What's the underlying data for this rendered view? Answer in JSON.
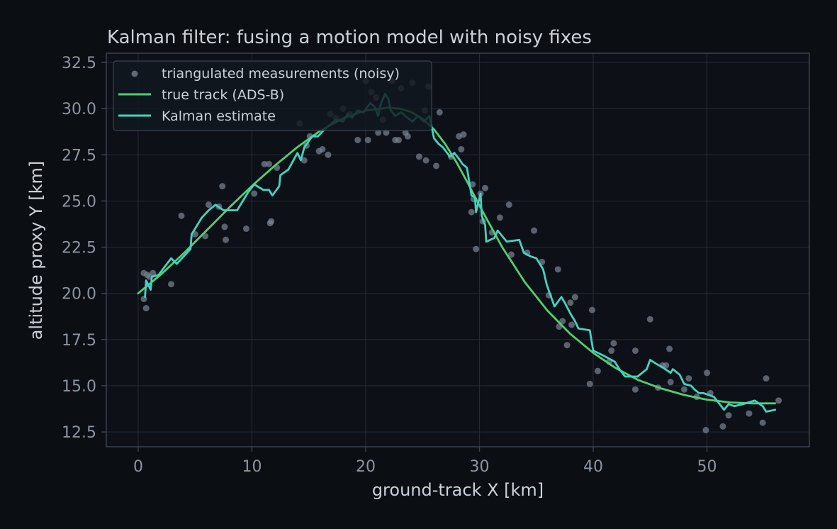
{
  "chart_data": {
    "type": "line",
    "title": "Kalman filter: fusing a motion model with noisy fixes",
    "xlabel": "ground-track X [km]",
    "ylabel": "altitude proxy Y [km]",
    "xlim": [
      -2.8,
      59
    ],
    "ylim": [
      11.7,
      33
    ],
    "xticks": [
      0,
      10,
      20,
      30,
      40,
      50
    ],
    "yticks": [
      12.5,
      15.0,
      17.5,
      20.0,
      22.5,
      25.0,
      27.5,
      30.0,
      32.5
    ],
    "xtick_labels": [
      "0",
      "10",
      "20",
      "30",
      "40",
      "50"
    ],
    "ytick_labels": [
      "12.5",
      "15.0",
      "17.5",
      "20.0",
      "22.5",
      "25.0",
      "27.5",
      "30.0",
      "32.5"
    ],
    "grid": true,
    "legend_position": "top-left",
    "colors": {
      "background": "#0b0e13",
      "plot_background": "#0d1117",
      "measurements": "#7b8594",
      "true_track": "#4fcf73",
      "kalman": "#45d1c0"
    },
    "series": [
      {
        "name": "triangulated measurements (noisy)",
        "kind": "scatter",
        "points": [
          [
            0.5,
            21.1
          ],
          [
            0.5,
            19.7
          ],
          [
            0.7,
            19.2
          ],
          [
            0.8,
            21.0
          ],
          [
            1.0,
            20.9
          ],
          [
            1.3,
            21.1
          ],
          [
            2.9,
            20.5
          ],
          [
            3.8,
            24.2
          ],
          [
            5.0,
            23.2
          ],
          [
            5.9,
            23.1
          ],
          [
            6.2,
            24.8
          ],
          [
            7.1,
            24.7
          ],
          [
            7.4,
            25.8
          ],
          [
            7.6,
            23.6
          ],
          [
            7.7,
            22.9
          ],
          [
            9.5,
            23.5
          ],
          [
            10.2,
            25.4
          ],
          [
            11.1,
            27.0
          ],
          [
            11.5,
            27.0
          ],
          [
            11.6,
            23.8
          ],
          [
            11.7,
            23.9
          ],
          [
            12.2,
            26.8
          ],
          [
            14.2,
            29.2
          ],
          [
            14.6,
            27.2
          ],
          [
            14.8,
            28.0
          ],
          [
            15.1,
            28.5
          ],
          [
            15.9,
            27.7
          ],
          [
            16.2,
            27.8
          ],
          [
            16.7,
            27.5
          ],
          [
            16.9,
            29.7
          ],
          [
            17.4,
            29.5
          ],
          [
            18.0,
            30.0
          ],
          [
            18.6,
            29.7
          ],
          [
            19.3,
            28.3
          ],
          [
            20.0,
            31.5
          ],
          [
            20.2,
            28.3
          ],
          [
            20.5,
            30.9
          ],
          [
            20.9,
            30.6
          ],
          [
            21.1,
            28.7
          ],
          [
            21.5,
            29.4
          ],
          [
            21.8,
            28.7
          ],
          [
            22.3,
            31.5
          ],
          [
            22.6,
            28.3
          ],
          [
            22.9,
            28.3
          ],
          [
            23.1,
            31.1
          ],
          [
            23.5,
            28.7
          ],
          [
            23.7,
            28.5
          ],
          [
            24.1,
            31.4
          ],
          [
            24.7,
            27.4
          ],
          [
            25.2,
            29.9
          ],
          [
            25.3,
            27.2
          ],
          [
            25.5,
            31.2
          ],
          [
            26.2,
            26.9
          ],
          [
            26.5,
            29.8
          ],
          [
            27.5,
            27.4
          ],
          [
            28.2,
            28.5
          ],
          [
            28.4,
            27.8
          ],
          [
            28.6,
            28.6
          ],
          [
            29.3,
            24.4
          ],
          [
            29.4,
            25.9
          ],
          [
            29.5,
            25.1
          ],
          [
            29.7,
            22.4
          ],
          [
            30.1,
            25.4
          ],
          [
            30.3,
            23.9
          ],
          [
            30.5,
            25.7
          ],
          [
            31.1,
            23.3
          ],
          [
            31.8,
            24.1
          ],
          [
            32.6,
            24.8
          ],
          [
            32.8,
            22.1
          ],
          [
            34.2,
            22.2
          ],
          [
            34.8,
            23.4
          ],
          [
            35.5,
            21.7
          ],
          [
            36.1,
            19.9
          ],
          [
            36.9,
            21.3
          ],
          [
            37.0,
            18.2
          ],
          [
            37.3,
            18.5
          ],
          [
            37.7,
            17.2
          ],
          [
            38.0,
            19.5
          ],
          [
            38.1,
            18.3
          ],
          [
            38.4,
            19.8
          ],
          [
            39.7,
            15.1
          ],
          [
            39.9,
            19.1
          ],
          [
            40.4,
            15.8
          ],
          [
            41.4,
            16.3
          ],
          [
            41.6,
            16.9
          ],
          [
            41.8,
            17.3
          ],
          [
            43.7,
            16.9
          ],
          [
            43.7,
            14.8
          ],
          [
            45.0,
            18.6
          ],
          [
            45.7,
            14.9
          ],
          [
            46.1,
            16.1
          ],
          [
            46.4,
            16.1
          ],
          [
            46.7,
            17.0
          ],
          [
            46.8,
            15.2
          ],
          [
            48.0,
            14.8
          ],
          [
            48.4,
            15.4
          ],
          [
            49.1,
            14.4
          ],
          [
            49.9,
            12.6
          ],
          [
            50.0,
            15.7
          ],
          [
            50.3,
            14.6
          ],
          [
            51.4,
            12.8
          ],
          [
            51.9,
            13.4
          ],
          [
            53.7,
            13.5
          ],
          [
            54.9,
            13.0
          ],
          [
            55.2,
            15.4
          ],
          [
            56.3,
            14.2
          ]
        ]
      },
      {
        "name": "true track (ADS-B)",
        "kind": "line",
        "points": [
          [
            0,
            20.0
          ],
          [
            2,
            21.02
          ],
          [
            4,
            22.17
          ],
          [
            6,
            23.4
          ],
          [
            8,
            24.64
          ],
          [
            10,
            25.82
          ],
          [
            12,
            26.91
          ],
          [
            14,
            27.92
          ],
          [
            16,
            28.8
          ],
          [
            18,
            29.47
          ],
          [
            20,
            29.9
          ],
          [
            22,
            30.05
          ],
          [
            23,
            30.0
          ],
          [
            24,
            29.82
          ],
          [
            25,
            29.45
          ],
          [
            26,
            28.88
          ],
          [
            27,
            28.08
          ],
          [
            28,
            27.08
          ],
          [
            29,
            25.95
          ],
          [
            30,
            24.75
          ],
          [
            32,
            22.5
          ],
          [
            34,
            20.6
          ],
          [
            36,
            19.05
          ],
          [
            38,
            17.8
          ],
          [
            40,
            16.78
          ],
          [
            42,
            15.95
          ],
          [
            44,
            15.3
          ],
          [
            46,
            14.85
          ],
          [
            48,
            14.5
          ],
          [
            50,
            14.25
          ],
          [
            52,
            14.1
          ],
          [
            54,
            14.05
          ],
          [
            56,
            14.05
          ]
        ]
      },
      {
        "name": "Kalman estimate",
        "kind": "line",
        "points": [
          [
            0.6,
            19.8
          ],
          [
            0.7,
            20.7
          ],
          [
            1.1,
            20.2
          ],
          [
            1.2,
            20.9
          ],
          [
            1.8,
            21.0
          ],
          [
            2.9,
            21.9
          ],
          [
            3.4,
            21.6
          ],
          [
            4.6,
            22.4
          ],
          [
            4.7,
            23.2
          ],
          [
            5.6,
            24.1
          ],
          [
            6.2,
            24.5
          ],
          [
            6.8,
            24.8
          ],
          [
            7.5,
            24.5
          ],
          [
            8.7,
            24.5
          ],
          [
            9.7,
            25.5
          ],
          [
            10.2,
            25.9
          ],
          [
            11.0,
            25.6
          ],
          [
            11.5,
            25.6
          ],
          [
            11.8,
            25.3
          ],
          [
            12.4,
            25.8
          ],
          [
            12.5,
            26.4
          ],
          [
            13.2,
            26.7
          ],
          [
            14.0,
            27.6
          ],
          [
            14.3,
            27.2
          ],
          [
            14.6,
            27.9
          ],
          [
            15.3,
            28.5
          ],
          [
            15.8,
            28.5
          ],
          [
            16.6,
            29.0
          ],
          [
            17.4,
            29.4
          ],
          [
            18.0,
            29.3
          ],
          [
            18.4,
            29.7
          ],
          [
            18.8,
            29.5
          ],
          [
            19.3,
            29.9
          ],
          [
            19.8,
            29.8
          ],
          [
            20.4,
            30.3
          ],
          [
            20.8,
            30.1
          ],
          [
            21.1,
            29.6
          ],
          [
            21.3,
            30.2
          ],
          [
            21.7,
            30.8
          ],
          [
            22.0,
            30.5
          ],
          [
            22.2,
            29.9
          ],
          [
            22.6,
            29.6
          ],
          [
            23.1,
            29.8
          ],
          [
            23.7,
            29.5
          ],
          [
            24.1,
            29.3
          ],
          [
            24.6,
            29.6
          ],
          [
            25.1,
            29.3
          ],
          [
            25.6,
            29.6
          ],
          [
            26.0,
            28.4
          ],
          [
            26.4,
            28.1
          ],
          [
            26.8,
            27.9
          ],
          [
            27.4,
            27.4
          ],
          [
            27.8,
            27.6
          ],
          [
            28.3,
            27.2
          ],
          [
            28.5,
            27.0
          ],
          [
            28.9,
            26.8
          ],
          [
            29.3,
            25.3
          ],
          [
            29.6,
            25.2
          ],
          [
            29.7,
            24.4
          ],
          [
            30.1,
            25.4
          ],
          [
            30.2,
            24.2
          ],
          [
            30.5,
            23.7
          ],
          [
            30.6,
            22.8
          ],
          [
            31.3,
            23.0
          ],
          [
            31.6,
            23.4
          ],
          [
            32.4,
            22.8
          ],
          [
            33.5,
            22.9
          ],
          [
            33.9,
            22.2
          ],
          [
            34.5,
            22.0
          ],
          [
            35.0,
            21.9
          ],
          [
            35.6,
            21.3
          ],
          [
            35.9,
            20.5
          ],
          [
            36.3,
            19.8
          ],
          [
            36.6,
            19.3
          ],
          [
            37.2,
            19.8
          ],
          [
            37.5,
            19.5
          ],
          [
            38.0,
            18.9
          ],
          [
            38.4,
            18.5
          ],
          [
            38.7,
            18.1
          ],
          [
            39.7,
            18.0
          ],
          [
            40.0,
            16.9
          ],
          [
            41.0,
            16.6
          ],
          [
            41.9,
            16.3
          ],
          [
            42.3,
            15.9
          ],
          [
            42.8,
            15.5
          ],
          [
            43.9,
            15.5
          ],
          [
            44.7,
            15.9
          ],
          [
            45.0,
            16.4
          ],
          [
            45.5,
            16.2
          ],
          [
            46.1,
            16.0
          ],
          [
            46.8,
            15.7
          ],
          [
            47.0,
            15.9
          ],
          [
            47.6,
            15.6
          ],
          [
            48.0,
            15.1
          ],
          [
            48.6,
            15.0
          ],
          [
            48.9,
            14.8
          ],
          [
            49.3,
            14.6
          ],
          [
            49.7,
            14.6
          ],
          [
            50.6,
            14.4
          ],
          [
            51.0,
            14.1
          ],
          [
            51.5,
            13.7
          ],
          [
            51.9,
            14.0
          ],
          [
            52.4,
            13.9
          ],
          [
            53.1,
            14.0
          ],
          [
            54.2,
            14.2
          ],
          [
            54.9,
            13.9
          ],
          [
            55.2,
            13.6
          ],
          [
            56.0,
            13.7
          ]
        ]
      }
    ]
  }
}
